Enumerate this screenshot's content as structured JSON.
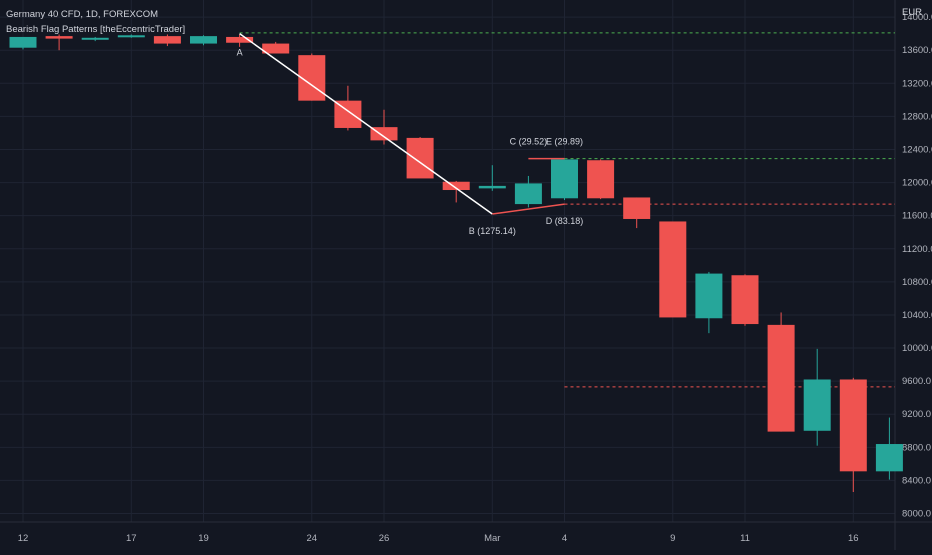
{
  "header": {
    "symbol_line": "Germany 40 CFD, 1D, FOREXCOM",
    "indicator_line": "Bearish Flag Patterns [theEccentricTrader]",
    "currency": "EUR"
  },
  "colors": {
    "background": "#131722",
    "grid": "#1f2433",
    "up": "#26a69a",
    "down": "#ef5350",
    "text": "#b2b5be",
    "pattern_line": "#ffffff",
    "flag_line": "#ef5350",
    "level_green": "#4caf50",
    "level_red": "#ef5350"
  },
  "chart_data": {
    "type": "candlestick",
    "y_axis": {
      "ticks": [
        8000,
        8400,
        8800,
        9200,
        9600,
        10000,
        10400,
        10800,
        11200,
        11600,
        12000,
        12400,
        12800,
        13200,
        13600,
        14000
      ],
      "tick_labels": [
        "8000.0",
        "8400.0",
        "8800.0",
        "9200.0",
        "9600.0",
        "10000.0",
        "10400.0",
        "10800.0",
        "11200.0",
        "11600.0",
        "12000.0",
        "12400.0",
        "12800.0",
        "13200.0",
        "13600.0",
        "14000.0"
      ],
      "range": [
        7680,
        14400
      ]
    },
    "x_axis": {
      "labels": [
        {
          "index": 0,
          "text": "12"
        },
        {
          "index": 3,
          "text": "17"
        },
        {
          "index": 5,
          "text": "19"
        },
        {
          "index": 8,
          "text": "24"
        },
        {
          "index": 10,
          "text": "26"
        },
        {
          "index": 13,
          "text": "Mar"
        },
        {
          "index": 15,
          "text": "4"
        },
        {
          "index": 18,
          "text": "9"
        },
        {
          "index": 20,
          "text": "11"
        },
        {
          "index": 23,
          "text": "16"
        }
      ]
    },
    "candles": [
      {
        "o": 13630,
        "h": 13760,
        "l": 13610,
        "c": 13760
      },
      {
        "o": 13770,
        "h": 13790,
        "l": 13600,
        "c": 13740
      },
      {
        "o": 13730,
        "h": 13760,
        "l": 13710,
        "c": 13750
      },
      {
        "o": 13770,
        "h": 13790,
        "l": 13750,
        "c": 13780
      },
      {
        "o": 13770,
        "h": 13790,
        "l": 13650,
        "c": 13680
      },
      {
        "o": 13680,
        "h": 13780,
        "l": 13660,
        "c": 13770
      },
      {
        "o": 13760,
        "h": 13790,
        "l": 13640,
        "c": 13690
      },
      {
        "o": 13680,
        "h": 13700,
        "l": 13560,
        "c": 13560
      },
      {
        "o": 13540,
        "h": 13560,
        "l": 12990,
        "c": 12990
      },
      {
        "o": 12990,
        "h": 13170,
        "l": 12630,
        "c": 12660
      },
      {
        "o": 12670,
        "h": 12880,
        "l": 12460,
        "c": 12510
      },
      {
        "o": 12540,
        "h": 12550,
        "l": 12080,
        "c": 12050
      },
      {
        "o": 12010,
        "h": 12020,
        "l": 11760,
        "c": 11910
      },
      {
        "o": 11930,
        "h": 12210,
        "l": 11900,
        "c": 11960
      },
      {
        "o": 11740,
        "h": 12080,
        "l": 11700,
        "c": 11990
      },
      {
        "o": 11810,
        "h": 12280,
        "l": 11790,
        "c": 12280
      },
      {
        "o": 12270,
        "h": 12280,
        "l": 11800,
        "c": 11810
      },
      {
        "o": 11820,
        "h": 11820,
        "l": 11450,
        "c": 11560
      },
      {
        "o": 11530,
        "h": 11520,
        "l": 10380,
        "c": 10370
      },
      {
        "o": 10360,
        "h": 10920,
        "l": 10180,
        "c": 10900
      },
      {
        "o": 10880,
        "h": 10890,
        "l": 10270,
        "c": 10290
      },
      {
        "o": 10280,
        "h": 10430,
        "l": 8990,
        "c": 8990
      },
      {
        "o": 9000,
        "h": 9990,
        "l": 8820,
        "c": 9620
      },
      {
        "o": 9620,
        "h": 9640,
        "l": 8260,
        "c": 8510
      },
      {
        "o": 8510,
        "h": 9160,
        "l": 8410,
        "c": 8840
      }
    ],
    "pattern": {
      "line_points": [
        {
          "index": 6,
          "value": 13800,
          "label": "A"
        },
        {
          "index": 13,
          "value": 11620,
          "label": "B (1275.14)"
        },
        {
          "index": 15,
          "value": 11740,
          "label": "D (83.18)"
        }
      ],
      "flag_top": [
        {
          "index": 14,
          "value": 12290,
          "label": "C (29.52)"
        },
        {
          "index": 15,
          "value": 12290,
          "label": "E (29.89)"
        }
      ]
    },
    "levels": [
      {
        "value": 13810,
        "from_index": 6,
        "color": "level_green"
      },
      {
        "value": 12290,
        "from_index": 15,
        "color": "level_green"
      },
      {
        "value": 11740,
        "from_index": 15,
        "color": "level_red"
      },
      {
        "value": 9530,
        "from_index": 15,
        "color": "level_red"
      }
    ]
  }
}
